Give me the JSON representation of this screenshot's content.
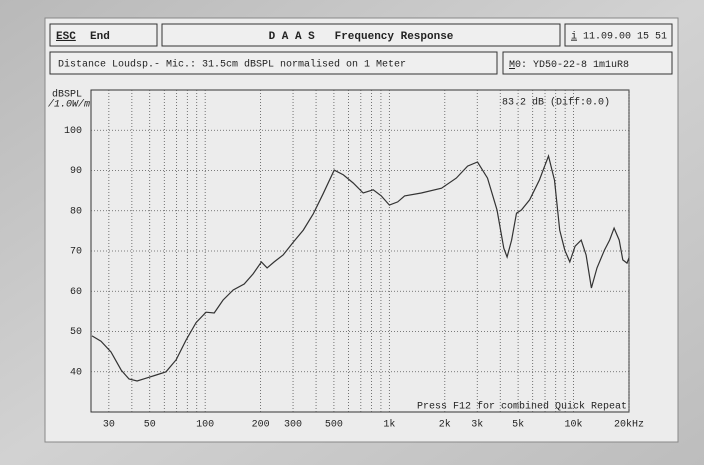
{
  "header": {
    "escape_key": "ESC",
    "escape_label": "End",
    "title": "D A A S   Frequency Response",
    "info_key": "i",
    "datetime": "11.09.00 15 51",
    "description": "Distance Loudsp.- Mic.: 31.5cm dBSPL normalised on 1 Meter",
    "model_key": "M",
    "model": "0: YD50-22-8 1m1uR8"
  },
  "chart_data": {
    "type": "line",
    "y_label": "dBSPL",
    "y_unit": "/1.0W/m",
    "annotation": "83.2 dB (Diff:0.0)",
    "footnote": "Press F12 for combined Quick Repeat",
    "x_scale": "log",
    "xlim": [
      24,
      20000
    ],
    "ylim": [
      30,
      110
    ],
    "grid": true,
    "color": "#333333",
    "xticks": [
      30,
      50,
      100,
      200,
      300,
      500,
      {
        "value": 1000,
        "label": "1k"
      },
      {
        "value": 2000,
        "label": "2k"
      },
      {
        "value": 3000,
        "label": "3k"
      },
      {
        "value": 5000,
        "label": "5k"
      },
      {
        "value": 10000,
        "label": "10k"
      },
      {
        "value": 20000,
        "label": "20kHz"
      }
    ],
    "yticks": [
      40,
      50,
      60,
      70,
      80,
      90,
      100
    ],
    "x": [
      24.3,
      27.2,
      30.8,
      35,
      38.6,
      42.7,
      47.8,
      54.2,
      61.3,
      69.6,
      78.8,
      89.3,
      101,
      112,
      125,
      142,
      163,
      182,
      202,
      217,
      237,
      265,
      301,
      341,
      386,
      437,
      502,
      563,
      636,
      721,
      817,
      904,
      1000,
      1110,
      1210,
      1490,
      1920,
      2310,
      2660,
      3010,
      3410,
      3840,
      4180,
      4360,
      4610,
      4900,
      5220,
      5770,
      6520,
      7310,
      7880,
      8410,
      8960,
      9540,
      10200,
      11000,
      11700,
      12500,
      13400,
      14700,
      15700,
      16600,
      17700,
      18500,
      19500,
      20000
    ],
    "values": [
      48.9,
      47.6,
      44.9,
      40.4,
      38.2,
      37.7,
      38.4,
      39.2,
      40,
      43,
      47.9,
      52.2,
      54.8,
      54.6,
      57.8,
      60.3,
      61.8,
      64.3,
      67.3,
      65.8,
      67.3,
      69,
      72.2,
      75.2,
      79.2,
      84.2,
      90.1,
      88.9,
      86.9,
      84.4,
      85.2,
      83.7,
      81.4,
      82.2,
      83.7,
      84.4,
      85.6,
      88.1,
      91.1,
      92.1,
      88.1,
      80.2,
      70.7,
      68.5,
      72.7,
      79.4,
      80.2,
      82.7,
      87.6,
      93.6,
      87.6,
      75.2,
      70.2,
      67.3,
      71.2,
      72.7,
      69,
      60.8,
      65.8,
      70.2,
      72.7,
      75.7,
      72.7,
      67.8,
      67,
      68.3
    ]
  }
}
